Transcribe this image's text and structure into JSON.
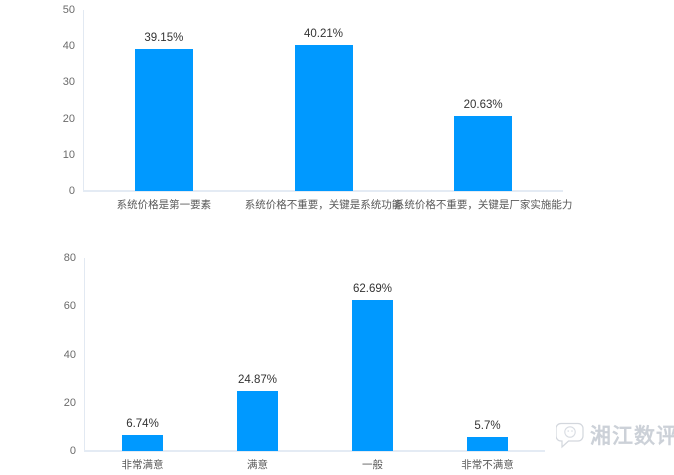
{
  "page": {
    "background": "#ffffff"
  },
  "colors": {
    "bar": "#0099ff",
    "axis_line": "#e2e9f2",
    "tick_label": "#6b6b6b",
    "category_label": "#595959",
    "value_label": "#333333",
    "watermark": "#ccd1d8"
  },
  "chart_data": [
    {
      "type": "bar",
      "title": "",
      "xlabel": "",
      "ylabel": "",
      "categories": [
        "系统价格是第一要素",
        "系统价格不重要，关键是系统功能",
        "系统价格不重要，关键是厂家实施能力"
      ],
      "values": [
        39.15,
        40.21,
        20.63
      ],
      "value_labels": [
        "39.15%",
        "40.21%",
        "20.63%"
      ],
      "ylim": [
        0,
        50
      ],
      "yticks": [
        0,
        10,
        20,
        30,
        40,
        50
      ],
      "grid": false,
      "legend": null,
      "bar_color": "#0099ff"
    },
    {
      "type": "bar",
      "title": "",
      "xlabel": "",
      "ylabel": "",
      "categories": [
        "非常满意",
        "满意",
        "一般",
        "非常不满意"
      ],
      "values": [
        6.74,
        24.87,
        62.69,
        5.7
      ],
      "value_labels": [
        "6.74%",
        "24.87%",
        "62.69%",
        "5.7%"
      ],
      "ylim": [
        0,
        80
      ],
      "yticks": [
        0,
        20,
        40,
        60,
        80
      ],
      "grid": false,
      "legend": null,
      "bar_color": "#0099ff"
    }
  ],
  "watermark": {
    "text": "湘江数评",
    "icon": "wechat-bubble-icon"
  }
}
